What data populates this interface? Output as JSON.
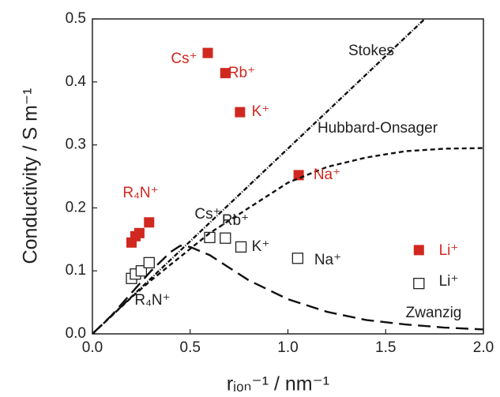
{
  "chart_data": {
    "type": "scatter",
    "x_label": "rᵢₒₙ⁻¹ / nm⁻¹",
    "y_label": "Conductivity / S m⁻¹",
    "xlim": [
      0,
      2.0
    ],
    "ylim": [
      0,
      0.5
    ],
    "xticks": [
      {
        "value": 0,
        "label": "0.0"
      },
      0.5,
      {
        "value": 1,
        "label": "1.0"
      },
      1.5,
      {
        "value": 2,
        "label": "2.0"
      }
    ],
    "yticks": [
      {
        "value": 0,
        "label": "0.0"
      },
      0.1,
      0.2,
      0.3,
      0.4,
      0.5
    ],
    "series": [
      {
        "color": "#d0281f",
        "marker": "square",
        "filled": true,
        "x": [
          0.59,
          0.68,
          0.755,
          1.055,
          1.67,
          0.2,
          0.22,
          0.24,
          0.29
        ],
        "values": [
          0.446,
          0.414,
          0.352,
          0.252,
          0.133,
          0.145,
          0.155,
          0.16,
          0.177
        ]
      },
      {
        "color": "#222222",
        "marker": "square",
        "filled": false,
        "x": [
          0.6,
          0.68,
          0.76,
          1.05,
          1.67,
          0.2,
          0.22,
          0.25,
          0.29
        ],
        "values": [
          0.153,
          0.152,
          0.138,
          0.12,
          0.08,
          0.088,
          0.095,
          0.1,
          0.113
        ]
      },
      {
        "name": "Stokes",
        "color": "#111111",
        "line": true,
        "dash": "6,2,1,2",
        "x": [
          0,
          1.7
        ],
        "values": [
          0,
          0.5
        ]
      },
      {
        "name": "Hubbard-Onsager",
        "color": "#111111",
        "line": true,
        "dash": "6,4",
        "x": [
          0,
          0.1,
          0.2,
          0.3,
          0.4,
          0.5,
          0.6,
          0.7,
          0.8,
          1.0,
          1.2,
          1.4,
          1.6,
          1.8,
          2.0
        ],
        "values": [
          0,
          0.029,
          0.058,
          0.085,
          0.11,
          0.135,
          0.16,
          0.18,
          0.2,
          0.24,
          0.265,
          0.28,
          0.29,
          0.294,
          0.295
        ]
      },
      {
        "name": "Zwanzig",
        "color": "#111111",
        "line": true,
        "dash": "16,8",
        "x": [
          0,
          0.1,
          0.2,
          0.3,
          0.4,
          0.45,
          0.5,
          0.6,
          0.7,
          0.8,
          1.0,
          1.2,
          1.4,
          1.6,
          1.8,
          2.0
        ],
        "values": [
          0,
          0.03,
          0.065,
          0.1,
          0.13,
          0.14,
          0.138,
          0.125,
          0.105,
          0.085,
          0.055,
          0.035,
          0.022,
          0.015,
          0.01,
          0.007
        ]
      }
    ],
    "annotations": [
      {
        "text": "Cs⁺",
        "color": "#d0281f"
      },
      {
        "text": "Rb⁺",
        "color": "#d0281f"
      },
      {
        "text": "K⁺",
        "color": "#d0281f"
      },
      {
        "text": "Na⁺",
        "color": "#d0281f"
      },
      {
        "text": "Li⁺",
        "color": "#d0281f"
      },
      {
        "text": "R₄N⁺",
        "color": "#d0281f"
      },
      {
        "text": "Cs⁺",
        "color": "#222222"
      },
      {
        "text": "Rb⁺",
        "color": "#222222"
      },
      {
        "text": "K⁺",
        "color": "#222222"
      },
      {
        "text": "Na⁺",
        "color": "#222222"
      },
      {
        "text": "Li⁺",
        "color": "#222222"
      },
      {
        "text": "R₄N⁺",
        "color": "#222222"
      }
    ]
  }
}
